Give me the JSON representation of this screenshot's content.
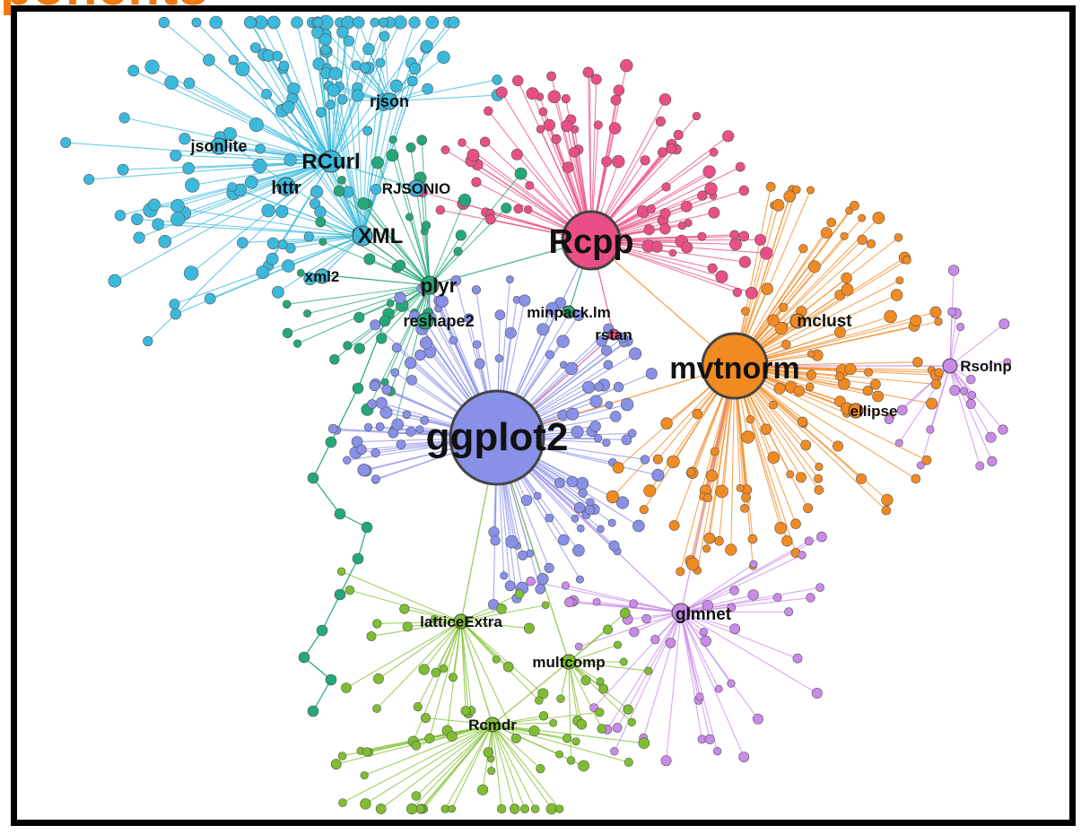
{
  "header": {
    "title_fragment": "ponents"
  },
  "colors": {
    "cyan": "#3bb9dd",
    "pink": "#e94f86",
    "green": "#24a877",
    "blue": "#8890e8",
    "orange": "#f28a22",
    "purple": "#c98ae8",
    "lime": "#7fbf2f",
    "frame": "#000000",
    "heading": "#f07a10"
  },
  "nodes": {
    "ggplot2": {
      "label": "ggplot2",
      "color": "blue"
    },
    "Rcpp": {
      "label": "Rcpp",
      "color": "pink"
    },
    "mvtnorm": {
      "label": "mvtnorm",
      "color": "orange"
    },
    "rjson": {
      "label": "rjson",
      "color": "cyan"
    },
    "jsonlite": {
      "label": "jsonlite",
      "color": "cyan"
    },
    "RCurl": {
      "label": "RCurl",
      "color": "cyan"
    },
    "httr": {
      "label": "httr",
      "color": "cyan"
    },
    "RJSONIO": {
      "label": "RJSONIO",
      "color": "cyan"
    },
    "XML": {
      "label": "XML",
      "color": "cyan"
    },
    "xml2": {
      "label": "xml2",
      "color": "cyan"
    },
    "plyr": {
      "label": "plyr",
      "color": "green"
    },
    "reshape2": {
      "label": "reshape2",
      "color": "green"
    },
    "minpack_lm": {
      "label": "minpack.lm",
      "color": "green"
    },
    "rstan": {
      "label": "rstan",
      "color": "pink"
    },
    "mclust": {
      "label": "mclust",
      "color": "orange"
    },
    "Rsolnp": {
      "label": "Rsolnp",
      "color": "purple"
    },
    "ellipse": {
      "label": "ellipse",
      "color": "orange"
    },
    "latticeExtra": {
      "label": "latticeExtra",
      "color": "lime"
    },
    "glmnet": {
      "label": "glmnet",
      "color": "purple"
    },
    "multcomp": {
      "label": "multcomp",
      "color": "lime"
    },
    "Rcmdr": {
      "label": "Rcmdr",
      "color": "lime"
    }
  }
}
